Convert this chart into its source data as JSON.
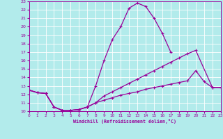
{
  "xlabel": "Windchill (Refroidissement éolien,°C)",
  "bg_color": "#b2ebeb",
  "grid_color": "#ffffff",
  "line_color": "#990099",
  "xmin": 0,
  "xmax": 23,
  "ymin": 10,
  "ymax": 23,
  "xticks": [
    0,
    1,
    2,
    3,
    4,
    5,
    6,
    7,
    8,
    9,
    10,
    11,
    12,
    13,
    14,
    15,
    16,
    17,
    18,
    19,
    20,
    21,
    22,
    23
  ],
  "yticks": [
    10,
    11,
    12,
    13,
    14,
    15,
    16,
    17,
    18,
    19,
    20,
    21,
    22,
    23
  ],
  "line1_x": [
    0,
    1,
    2,
    3,
    4,
    5,
    6,
    7,
    8,
    9,
    10,
    11,
    12,
    13,
    14,
    15,
    16,
    17
  ],
  "line1_y": [
    12.5,
    12.2,
    12.1,
    10.5,
    10.1,
    10.1,
    10.2,
    10.5,
    13.0,
    16.0,
    18.5,
    20.0,
    22.2,
    22.8,
    22.4,
    21.0,
    19.2,
    17.0
  ],
  "line2_x": [
    0,
    1,
    2,
    3,
    4,
    5,
    6,
    7,
    8,
    9,
    10,
    11,
    12,
    13,
    14,
    15,
    16,
    17,
    18,
    19,
    20,
    22,
    23
  ],
  "line2_y": [
    12.5,
    12.2,
    12.1,
    10.5,
    10.1,
    10.1,
    10.2,
    10.5,
    11.0,
    11.8,
    12.3,
    12.8,
    13.3,
    13.8,
    14.3,
    14.8,
    15.3,
    15.8,
    16.3,
    16.8,
    17.2,
    12.8,
    12.8
  ],
  "line3_x": [
    0,
    1,
    2,
    3,
    4,
    5,
    6,
    7,
    8,
    9,
    10,
    11,
    12,
    13,
    14,
    15,
    16,
    17,
    18,
    19,
    20,
    21,
    22,
    23
  ],
  "line3_y": [
    12.5,
    12.2,
    12.1,
    10.5,
    10.1,
    10.1,
    10.2,
    10.5,
    11.0,
    11.3,
    11.6,
    11.9,
    12.1,
    12.3,
    12.6,
    12.8,
    13.0,
    13.2,
    13.4,
    13.6,
    14.8,
    13.5,
    12.8,
    12.8
  ]
}
